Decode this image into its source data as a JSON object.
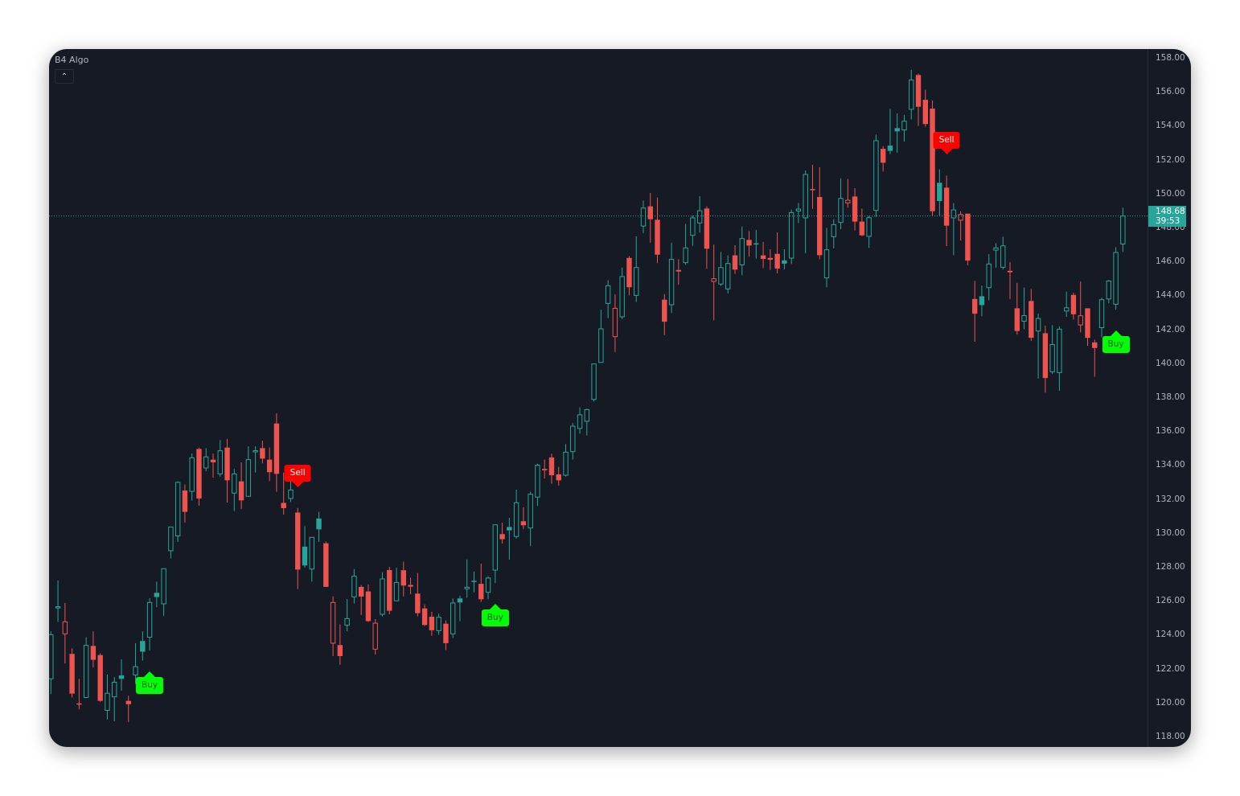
{
  "window": {
    "indicator_title": "B4 Algo",
    "collapse_icon": "chevron-up-icon"
  },
  "last_price": {
    "price": "148.68",
    "countdown": "39:53",
    "color": "#26a69a"
  },
  "colors": {
    "up": "#26a69a",
    "down": "#ef5350",
    "background": "#161a25",
    "buy": "#00ff00",
    "sell": "#ff0000"
  },
  "chart_data": {
    "type": "candlestick",
    "title": "",
    "ylim": [
      118,
      158
    ],
    "y_ticks": [
      "158.00",
      "156.00",
      "154.00",
      "152.00",
      "150.00",
      "148.00",
      "146.00",
      "144.00",
      "142.00",
      "140.00",
      "138.00",
      "136.00",
      "134.00",
      "132.00",
      "130.00",
      "128.00",
      "126.00",
      "124.00",
      "122.00",
      "120.00",
      "118.00"
    ],
    "grid": false,
    "ohlc_fields": [
      "open",
      "high",
      "low",
      "close"
    ],
    "candles": [
      [
        121.4,
        124.2,
        120.5,
        124.0
      ],
      [
        125.6,
        127.2,
        124.76,
        125.65
      ],
      [
        124.05,
        125.87,
        122.3,
        124.76
      ],
      [
        122.87,
        123.2,
        120.3,
        120.53
      ],
      [
        119.95,
        121.4,
        119.6,
        119.9
      ],
      [
        120.3,
        123.85,
        120.26,
        123.37
      ],
      [
        123.34,
        124.2,
        122.07,
        122.52
      ],
      [
        122.8,
        122.9,
        120.05,
        120.1
      ],
      [
        119.54,
        121.65,
        119.0,
        120.55
      ],
      [
        120.34,
        121.5,
        118.9,
        121.2
      ],
      [
        121.6,
        122.55,
        120.7,
        121.4
      ],
      [
        120.1,
        120.4,
        118.85,
        119.9
      ],
      [
        121.63,
        123.5,
        121.1,
        122.12
      ],
      [
        123.63,
        124.2,
        122.47,
        123.0
      ],
      [
        123.85,
        126.15,
        123.06,
        125.9
      ],
      [
        126.47,
        127.13,
        125.63,
        126.22
      ],
      [
        125.82,
        127.89,
        125.1,
        127.89
      ],
      [
        128.95,
        130.35,
        128.5,
        130.35
      ],
      [
        129.82,
        133.04,
        129.47,
        132.98
      ],
      [
        132.5,
        132.85,
        130.61,
        131.24
      ],
      [
        132.45,
        134.68,
        131.9,
        134.43
      ],
      [
        134.95,
        135.03,
        131.6,
        132.03
      ],
      [
        133.83,
        135.0,
        133.64,
        134.48
      ],
      [
        134.32,
        134.68,
        133.26,
        134.16
      ],
      [
        133.48,
        135.47,
        133.32,
        134.84
      ],
      [
        135.03,
        135.54,
        131.79,
        133.1
      ],
      [
        132.35,
        133.77,
        131.29,
        133.48
      ],
      [
        133.04,
        134.16,
        131.4,
        131.92
      ],
      [
        132.16,
        135.11,
        132.16,
        134.32
      ],
      [
        134.8,
        135.11,
        133.56,
        134.85
      ],
      [
        135.0,
        135.43,
        134.1,
        134.38
      ],
      [
        134.32,
        135.03,
        133.06,
        133.58
      ],
      [
        136.45,
        137.05,
        132.42,
        133.48
      ],
      [
        131.77,
        133.56,
        131.08,
        131.46
      ],
      [
        132.03,
        133.85,
        131.82,
        132.53
      ],
      [
        131.2,
        131.47,
        126.69,
        127.84
      ],
      [
        129.19,
        130.4,
        127.95,
        128.08
      ],
      [
        127.87,
        129.74,
        127.13,
        129.74
      ],
      [
        130.85,
        131.24,
        129.47,
        130.21
      ],
      [
        129.39,
        129.5,
        126.82,
        126.82
      ],
      [
        123.5,
        126.26,
        122.74,
        125.9
      ],
      [
        123.39,
        124.6,
        122.23,
        122.74
      ],
      [
        124.56,
        126.1,
        124.2,
        124.95
      ],
      [
        126.23,
        127.87,
        125.84,
        127.45
      ],
      [
        126.82,
        126.93,
        125.16,
        126.25
      ],
      [
        126.55,
        126.97,
        124.76,
        124.8
      ],
      [
        123.15,
        124.92,
        122.83,
        124.68
      ],
      [
        125.2,
        127.68,
        125.08,
        127.29
      ],
      [
        127.81,
        128.0,
        125.2,
        125.41
      ],
      [
        126.0,
        127.95,
        126.0,
        127.08
      ],
      [
        127.8,
        128.3,
        126.26,
        126.9
      ],
      [
        126.93,
        127.37,
        126.39,
        126.83
      ],
      [
        126.42,
        127.64,
        125.08,
        125.27
      ],
      [
        125.55,
        125.79,
        124.52,
        124.57
      ],
      [
        125.06,
        125.35,
        123.94,
        124.26
      ],
      [
        124.24,
        125.24,
        124.0,
        125.03
      ],
      [
        124.65,
        124.84,
        123.1,
        123.5
      ],
      [
        124.05,
        126.14,
        123.81,
        125.87
      ],
      [
        126.14,
        126.3,
        124.8,
        125.9
      ],
      [
        126.71,
        128.44,
        126.18,
        126.8
      ],
      [
        127.18,
        127.73,
        126.5,
        127.13
      ],
      [
        127.0,
        128.19,
        125.93,
        126.09
      ],
      [
        126.5,
        127.45,
        126.09,
        127.34
      ],
      [
        127.81,
        130.48,
        127.05,
        130.48
      ],
      [
        129.93,
        130.6,
        129.37,
        129.63
      ],
      [
        130.35,
        130.89,
        128.43,
        130.15
      ],
      [
        129.79,
        132.55,
        129.66,
        131.78
      ],
      [
        130.69,
        131.51,
        130.21,
        130.45
      ],
      [
        130.29,
        132.42,
        129.22,
        132.28
      ],
      [
        132.11,
        134.08,
        131.59,
        133.99
      ],
      [
        133.77,
        134.32,
        133.21,
        133.69
      ],
      [
        134.45,
        134.67,
        132.9,
        133.4
      ],
      [
        133.45,
        133.89,
        132.79,
        133.1
      ],
      [
        133.4,
        135.24,
        133.32,
        134.76
      ],
      [
        134.79,
        136.48,
        134.32,
        136.29
      ],
      [
        136.16,
        137.4,
        135.85,
        136.96
      ],
      [
        136.58,
        137.32,
        135.74,
        137.27
      ],
      [
        137.87,
        139.96,
        137.75,
        139.96
      ],
      [
        140.05,
        143.16,
        140.05,
        142.03
      ],
      [
        143.53,
        144.9,
        142.66,
        144.57
      ],
      [
        141.57,
        144.06,
        140.67,
        143.24
      ],
      [
        142.74,
        145.64,
        142.6,
        145.11
      ],
      [
        146.21,
        146.32,
        144.0,
        144.48
      ],
      [
        144.0,
        147.48,
        143.61,
        145.64
      ],
      [
        148.09,
        149.59,
        147.67,
        149.15
      ],
      [
        149.25,
        150.04,
        147.11,
        148.49
      ],
      [
        148.46,
        149.77,
        145.9,
        146.4
      ],
      [
        143.75,
        144.08,
        141.66,
        142.45
      ],
      [
        143.45,
        147.11,
        142.96,
        146.13
      ],
      [
        145.5,
        146.13,
        144.63,
        145.41
      ],
      [
        145.93,
        148.22,
        145.8,
        146.8
      ],
      [
        147.54,
        148.72,
        146.92,
        148.57
      ],
      [
        148.27,
        149.85,
        147.7,
        148.99
      ],
      [
        149.12,
        149.25,
        145.57,
        146.75
      ],
      [
        144.82,
        146.99,
        142.53,
        144.98
      ],
      [
        144.67,
        146.56,
        144.55,
        145.64
      ],
      [
        144.38,
        146.36,
        144.11,
        145.88
      ],
      [
        146.36,
        146.96,
        145.27,
        145.52
      ],
      [
        145.8,
        148.06,
        145.19,
        147.35
      ],
      [
        147.27,
        147.79,
        146.28,
        146.94
      ],
      [
        147.07,
        147.86,
        146.17,
        147.0
      ],
      [
        146.36,
        147.15,
        145.61,
        146.15
      ],
      [
        146.21,
        146.72,
        145.5,
        146.1
      ],
      [
        146.45,
        147.71,
        145.3,
        145.58
      ],
      [
        146.06,
        146.72,
        145.53,
        145.87
      ],
      [
        146.2,
        149.06,
        145.85,
        148.88
      ],
      [
        148.98,
        149.45,
        148.27,
        149.09
      ],
      [
        148.57,
        151.37,
        146.48,
        151.13
      ],
      [
        150.27,
        151.7,
        149.1,
        150.2
      ],
      [
        149.8,
        151.55,
        146.13,
        146.37
      ],
      [
        145.03,
        147.98,
        144.48,
        146.69
      ],
      [
        147.46,
        148.49,
        146.77,
        148.17
      ],
      [
        148.3,
        150.9,
        147.9,
        149.72
      ],
      [
        149.45,
        150.86,
        149.17,
        149.61
      ],
      [
        149.83,
        150.32,
        147.83,
        148.35
      ],
      [
        148.35,
        149.12,
        147.5,
        147.54
      ],
      [
        147.48,
        148.7,
        146.8,
        148.58
      ],
      [
        149.01,
        153.48,
        148.62,
        153.12
      ],
      [
        152.64,
        152.8,
        151.3,
        151.82
      ],
      [
        152.83,
        155.0,
        152.33,
        152.52
      ],
      [
        153.86,
        154.73,
        152.41,
        153.67
      ],
      [
        153.75,
        154.65,
        153.07,
        154.27
      ],
      [
        154.97,
        157.3,
        154.38,
        156.7
      ],
      [
        156.99,
        157.07,
        153.99,
        155.12
      ],
      [
        155.53,
        156.12,
        153.95,
        154.1
      ],
      [
        155.01,
        155.49,
        148.7,
        148.96
      ],
      [
        150.64,
        151.43,
        148.7,
        149.56
      ],
      [
        150.35,
        151.06,
        146.91,
        148.11
      ],
      [
        148.57,
        149.44,
        146.37,
        149.04
      ],
      [
        148.43,
        148.96,
        147.23,
        148.77
      ],
      [
        148.82,
        148.82,
        145.77,
        146.05
      ],
      [
        143.79,
        144.85,
        141.27,
        142.92
      ],
      [
        143.95,
        144.58,
        142.77,
        143.43
      ],
      [
        144.46,
        146.43,
        143.72,
        145.85
      ],
      [
        146.67,
        147.08,
        145.64,
        146.8
      ],
      [
        145.66,
        147.46,
        145.53,
        146.92
      ],
      [
        145.45,
        145.96,
        143.79,
        145.36
      ],
      [
        143.24,
        144.74,
        141.69,
        141.9
      ],
      [
        142.48,
        144.46,
        142.01,
        142.81
      ],
      [
        143.67,
        144.38,
        141.31,
        141.5
      ],
      [
        141.9,
        142.93,
        139.1,
        142.64
      ],
      [
        141.77,
        142.21,
        138.27,
        139.13
      ],
      [
        139.5,
        142.25,
        139.37,
        141.11
      ],
      [
        139.45,
        142.17,
        138.38,
        142.01
      ],
      [
        143.08,
        144.22,
        142.74,
        143.27
      ],
      [
        144.03,
        144.16,
        142.58,
        142.89
      ],
      [
        142.26,
        144.82,
        141.82,
        142.8
      ],
      [
        143.24,
        143.24,
        141.03,
        141.5
      ],
      [
        141.23,
        141.38,
        139.21,
        140.9
      ],
      [
        142.1,
        143.87,
        141.53,
        143.75
      ],
      [
        143.79,
        144.9,
        143.53,
        144.85
      ],
      [
        143.48,
        146.84,
        143.16,
        146.53
      ],
      [
        147.03,
        149.17,
        146.56,
        148.68
      ]
    ],
    "signals": [
      {
        "label": "Buy",
        "type": "buy",
        "candle": 14
      },
      {
        "label": "Sell",
        "type": "sell",
        "candle": 35
      },
      {
        "label": "Buy",
        "type": "buy",
        "candle": 63
      },
      {
        "label": "Sell",
        "type": "sell",
        "candle": 127
      },
      {
        "label": "Buy",
        "type": "buy",
        "candle": 151
      }
    ],
    "last_price_line": 148.68
  }
}
